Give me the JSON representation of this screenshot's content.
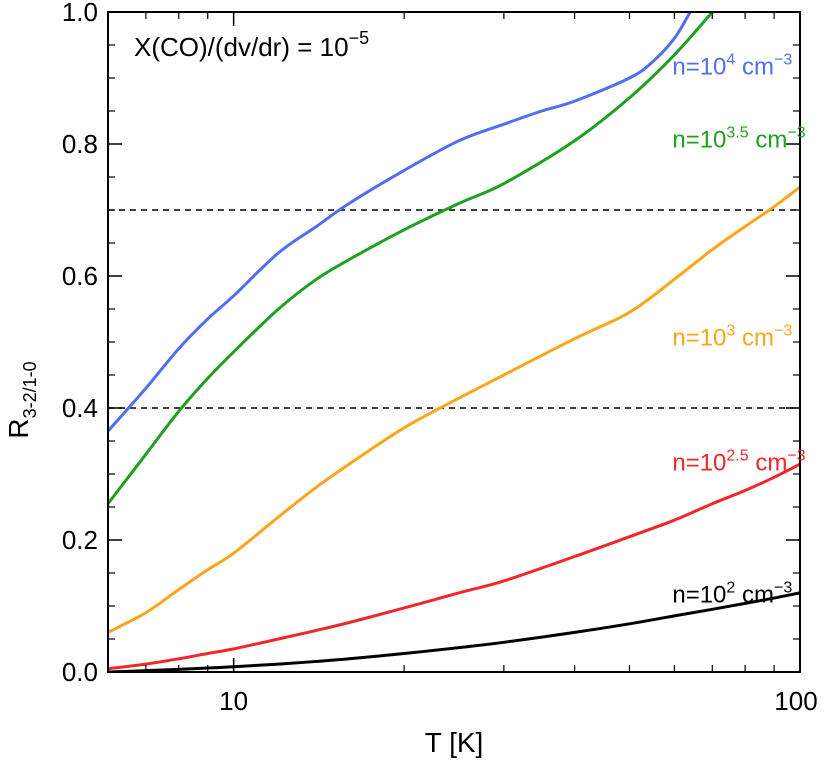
{
  "chart_data": {
    "type": "line",
    "title": "X(CO)/(dv/dr) = 10",
    "title_exponent": "−5",
    "xlabel": "T [K]",
    "ylabel": "R",
    "ylabel_subscript": "3-2/1-0",
    "xscale": "log",
    "xlim": [
      6,
      100
    ],
    "ylim": [
      0,
      1.0
    ],
    "x_ticks": [
      10,
      100
    ],
    "x_tick_labels": [
      "10",
      "100"
    ],
    "y_ticks": [
      0.0,
      0.2,
      0.4,
      0.6,
      0.8,
      1.0
    ],
    "y_tick_labels": [
      "0.0",
      "0.2",
      "0.4",
      "0.6",
      "0.8",
      "1.0"
    ],
    "reference_lines": [
      0.4,
      0.7
    ],
    "series": [
      {
        "name": "n=10^4 cm^-3",
        "label_base": "n=10",
        "label_exp": "4",
        "label_unit": " cm",
        "label_unit_exp": "−3",
        "color": "#4f6ef0",
        "x": [
          6,
          7,
          8,
          9,
          10,
          12,
          14,
          16,
          20,
          25,
          30,
          35,
          40,
          50,
          55,
          60,
          64
        ],
        "y": [
          0.365,
          0.43,
          0.49,
          0.535,
          0.57,
          0.635,
          0.675,
          0.71,
          0.76,
          0.805,
          0.83,
          0.85,
          0.865,
          0.9,
          0.925,
          0.96,
          1.0
        ]
      },
      {
        "name": "n=10^3.5 cm^-3",
        "label_base": "n=10",
        "label_exp": "3.5",
        "label_unit": " cm",
        "label_unit_exp": "−3",
        "color": "#1fa01f",
        "x": [
          6,
          7,
          8,
          9,
          10,
          12,
          14,
          16,
          20,
          25,
          30,
          40,
          50,
          60,
          70
        ],
        "y": [
          0.255,
          0.33,
          0.395,
          0.445,
          0.485,
          0.55,
          0.595,
          0.625,
          0.67,
          0.71,
          0.74,
          0.805,
          0.87,
          0.935,
          1.0
        ]
      },
      {
        "name": "n=10^3 cm^-3",
        "label_base": "n=10",
        "label_exp": "3",
        "label_unit": " cm",
        "label_unit_exp": "−3",
        "color": "#fba61a",
        "x": [
          6,
          7,
          8,
          9,
          10,
          12,
          14,
          16,
          20,
          25,
          30,
          40,
          50,
          60,
          70,
          80,
          90,
          100
        ],
        "y": [
          0.06,
          0.09,
          0.125,
          0.155,
          0.18,
          0.235,
          0.28,
          0.315,
          0.37,
          0.415,
          0.45,
          0.505,
          0.545,
          0.595,
          0.64,
          0.675,
          0.705,
          0.735
        ]
      },
      {
        "name": "n=10^2.5 cm^-3",
        "label_base": "n=10",
        "label_exp": "2.5",
        "label_unit": " cm",
        "label_unit_exp": "−3",
        "color": "#f2262a",
        "x": [
          6,
          7,
          8,
          9,
          10,
          12,
          14,
          16,
          20,
          25,
          30,
          40,
          50,
          60,
          70,
          80,
          90,
          100
        ],
        "y": [
          0.005,
          0.012,
          0.02,
          0.028,
          0.035,
          0.05,
          0.063,
          0.075,
          0.097,
          0.12,
          0.138,
          0.175,
          0.205,
          0.23,
          0.255,
          0.275,
          0.295,
          0.315
        ]
      },
      {
        "name": "n=10^2 cm^-3",
        "label_base": "n=10",
        "label_exp": "2",
        "label_unit": " cm",
        "label_unit_exp": "−3",
        "color": "#000000",
        "x": [
          6,
          7,
          8,
          9,
          10,
          12,
          14,
          16,
          20,
          25,
          30,
          40,
          50,
          60,
          70,
          80,
          90,
          100
        ],
        "y": [
          0.0,
          0.002,
          0.004,
          0.006,
          0.008,
          0.012,
          0.016,
          0.02,
          0.028,
          0.037,
          0.045,
          0.06,
          0.073,
          0.085,
          0.095,
          0.104,
          0.112,
          0.12
        ]
      }
    ]
  }
}
